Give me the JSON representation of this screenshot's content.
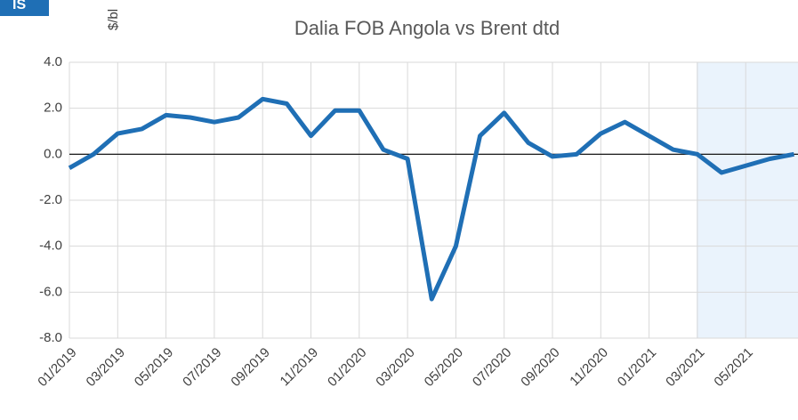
{
  "badge": "IS",
  "chart_data": {
    "type": "line",
    "title": "Dalia FOB Angola vs Brent dtd",
    "y_label": "$/bl",
    "categories": [
      "01/2019",
      null,
      "03/2019",
      null,
      "05/2019",
      null,
      "07/2019",
      null,
      "09/2019",
      null,
      "11/2019",
      null,
      "01/2020",
      null,
      "03/2020",
      null,
      "05/2020",
      null,
      "07/2020",
      null,
      "09/2020",
      null,
      "11/2020",
      null,
      "01/2021",
      null,
      "03/2021",
      null,
      "05/2021",
      null,
      null
    ],
    "series": [
      {
        "name": "Dalia FOB Angola vs Brent dtd",
        "color": "#1f6fb5",
        "values": [
          -0.6,
          0.0,
          0.9,
          1.1,
          1.7,
          1.6,
          1.4,
          1.6,
          2.4,
          2.2,
          0.8,
          1.9,
          1.9,
          0.2,
          -0.2,
          -6.3,
          -4.0,
          0.8,
          1.8,
          0.5,
          -0.1,
          0.0,
          0.9,
          1.4,
          0.8,
          0.2,
          0.0,
          -0.8,
          -0.5,
          -0.2,
          0.0
        ]
      }
    ],
    "ylim": [
      -8,
      4
    ],
    "yticks": [
      {
        "value": -8,
        "label": "-8.0"
      },
      {
        "value": -6,
        "label": "-6.0"
      },
      {
        "value": -4,
        "label": "-4.0"
      },
      {
        "value": -2,
        "label": "-2.0"
      },
      {
        "value": 0,
        "label": "0.0"
      },
      {
        "value": 2,
        "label": "2.0"
      },
      {
        "value": 4,
        "label": "4.0"
      }
    ],
    "grid": true
  }
}
